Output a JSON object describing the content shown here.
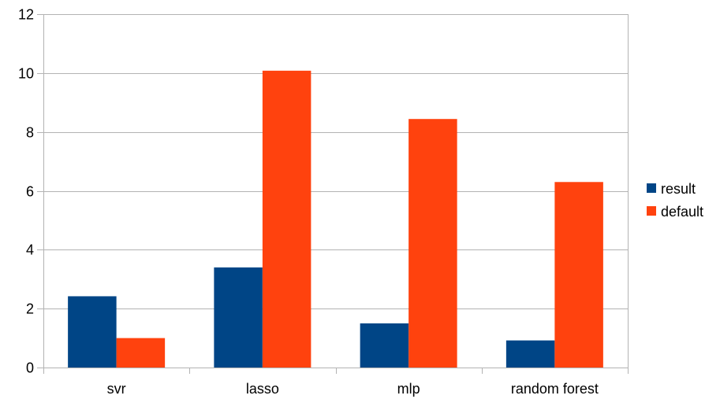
{
  "chart_data": {
    "type": "bar",
    "title": "",
    "xlabel": "",
    "ylabel": "",
    "categories": [
      "svr",
      "lasso",
      "mlp",
      "random forest"
    ],
    "series": [
      {
        "name": "result",
        "color": "#004586",
        "values": [
          2.42,
          3.4,
          1.5,
          0.92
        ]
      },
      {
        "name": "default",
        "color": "#ff420e",
        "values": [
          1.0,
          10.08,
          8.44,
          6.3
        ]
      }
    ],
    "ylim": [
      0,
      12
    ],
    "yticks": [
      0,
      2,
      4,
      6,
      8,
      10,
      12
    ],
    "grid": true,
    "legend": "right"
  }
}
